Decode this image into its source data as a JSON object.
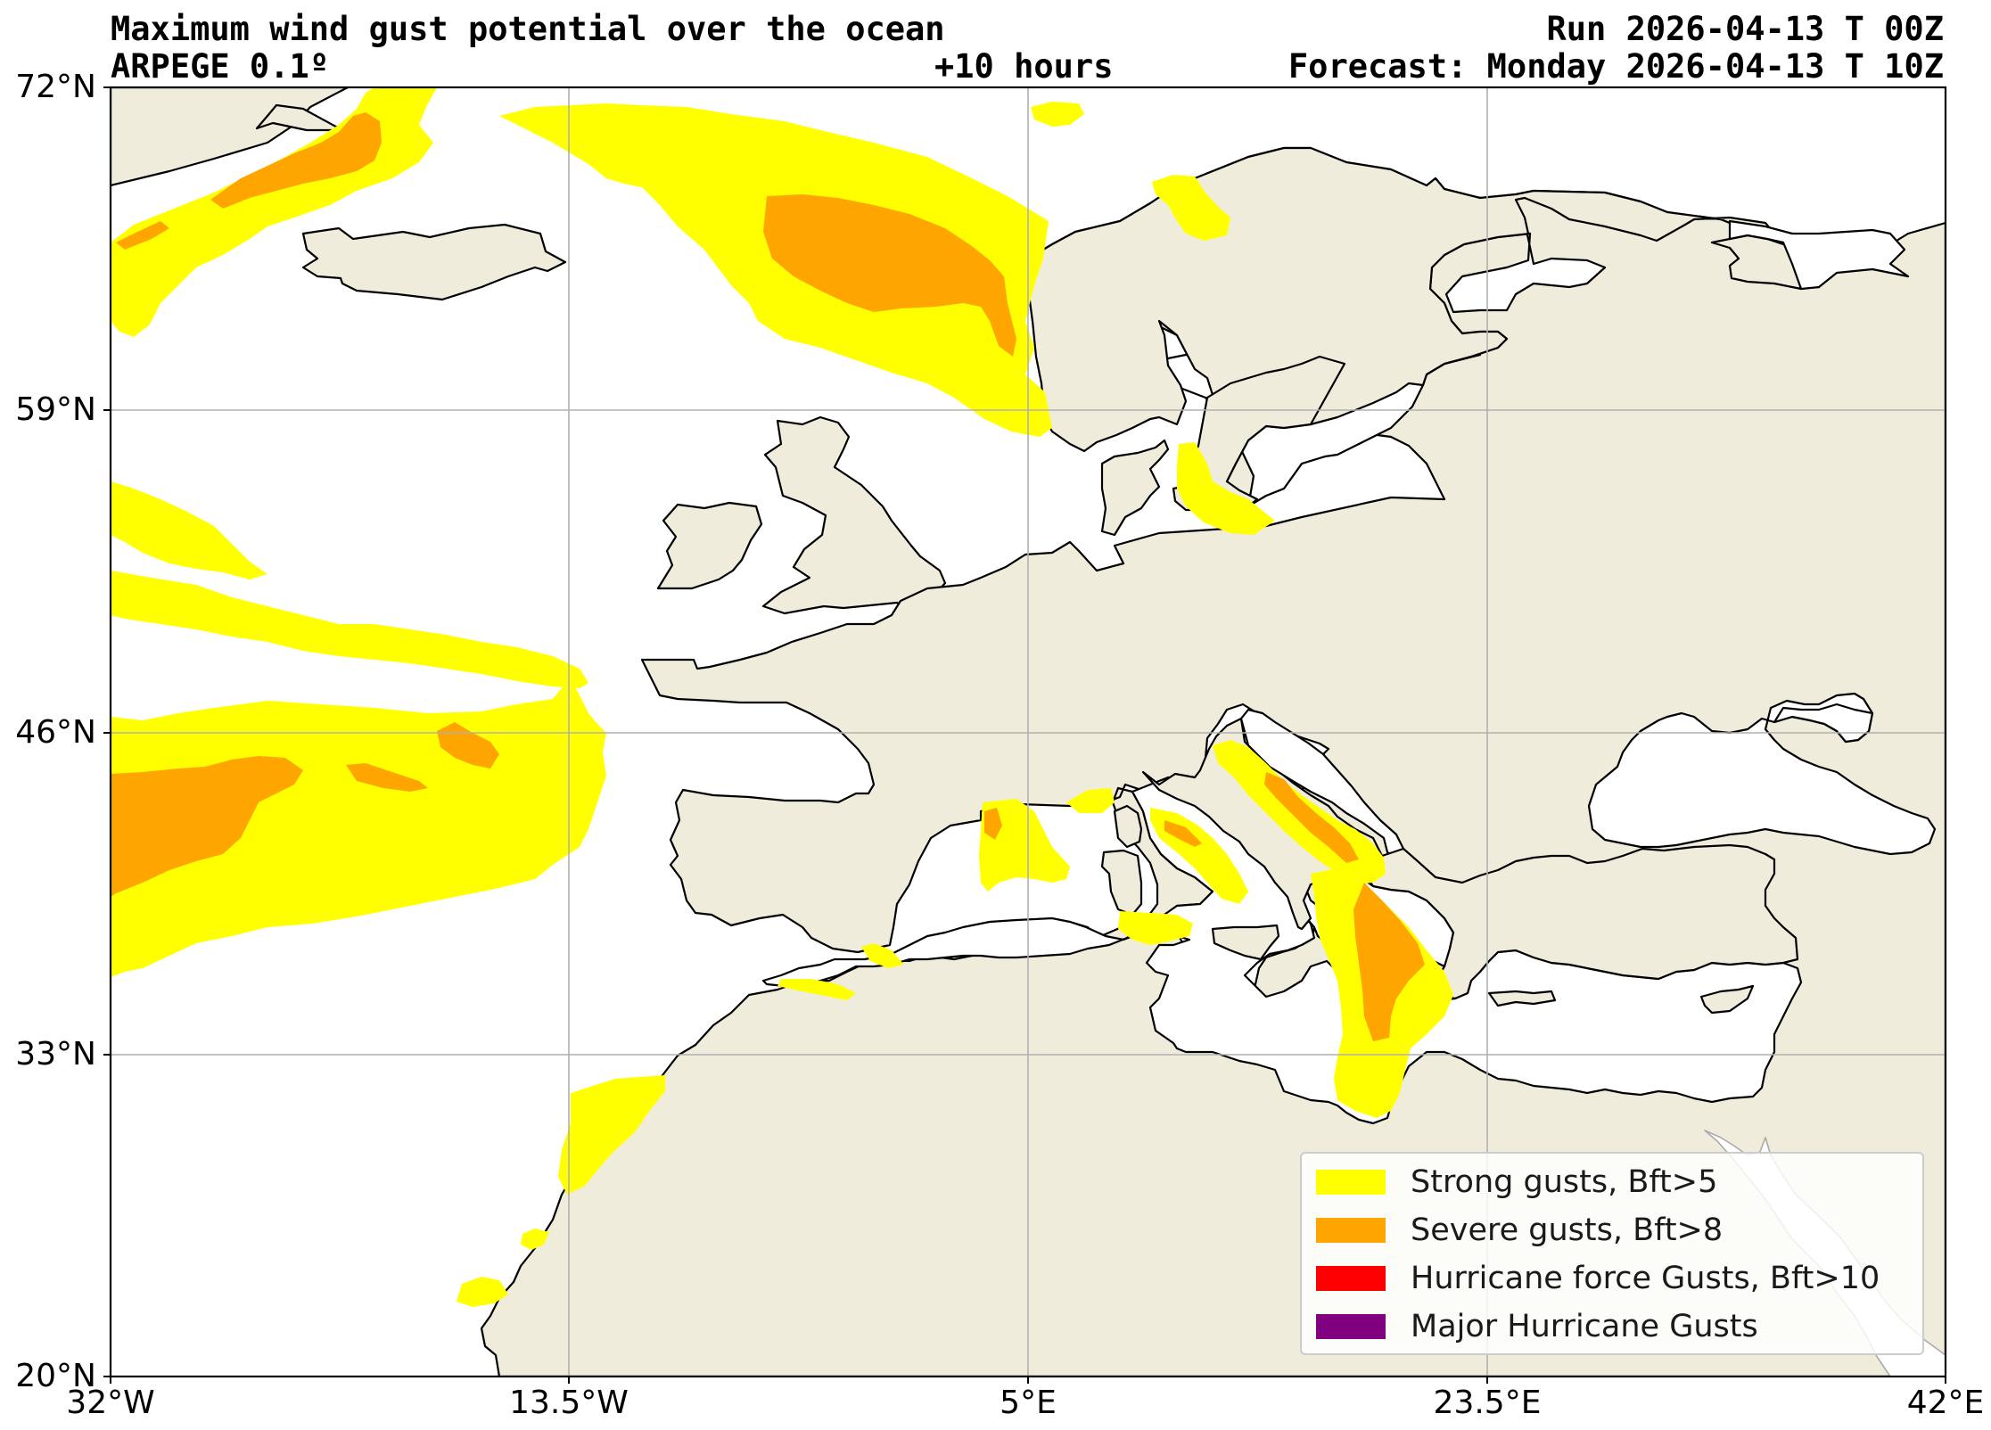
{
  "header": {
    "title": "Maximum wind gust potential over the ocean",
    "model": "ARPEGE 0.1º",
    "lead": "+10 hours",
    "run": "Run 2026-04-13 T 00Z",
    "forecast": "Forecast: Monday 2026-04-13 T 10Z"
  },
  "axes": {
    "lon_ticks": [
      "32°W",
      "13.5°W",
      "5°E",
      "23.5°E",
      "42°E"
    ],
    "lat_ticks": [
      "72°N",
      "59°N",
      "46°N",
      "33°N",
      "20°N"
    ],
    "lon_range": [
      -32,
      42
    ],
    "lat_range": [
      20,
      72
    ],
    "grid": true
  },
  "colors": {
    "land": "#efecdc",
    "ocean": "#ffffff",
    "strong": "#ffff00",
    "severe": "#ffa500",
    "hurricane": "#ff0000",
    "major": "#800080",
    "grid": "#b0b0b0"
  },
  "legend": {
    "placement": "bottom-right",
    "items": [
      {
        "label": "Strong gusts, Bft>5",
        "color": "#ffff00"
      },
      {
        "label": "Severe gusts, Bft>8",
        "color": "#ffa500"
      },
      {
        "label": "Hurricane force Gusts, Bft>10",
        "color": "#ff0000"
      },
      {
        "label": "Major Hurricane Gusts",
        "color": "#800080"
      }
    ]
  }
}
